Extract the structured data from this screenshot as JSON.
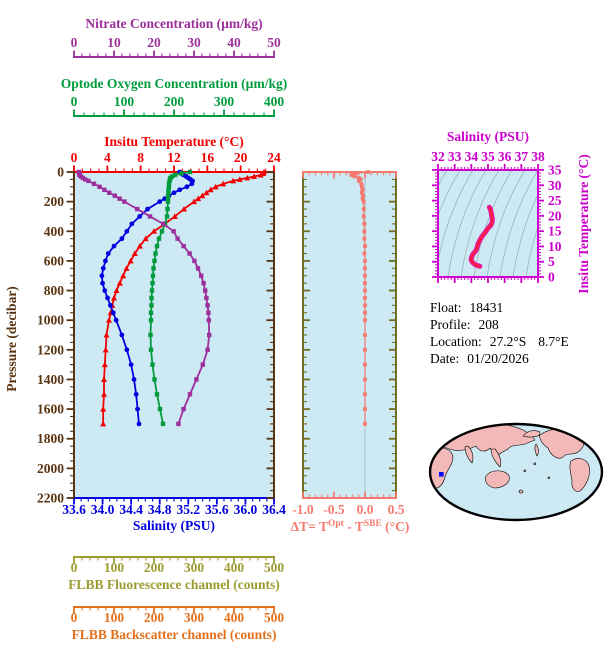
{
  "info": {
    "lines": [
      {
        "label": "Float:",
        "value": "18431"
      },
      {
        "label": "Profile:",
        "value": "208"
      },
      {
        "label": "Location:",
        "value": "27.2°S",
        "value2": "8.7°E"
      },
      {
        "label": "Date:",
        "value": "01/20/2026"
      }
    ]
  },
  "chart_data": [
    {
      "id": "main-profiles",
      "type": "line",
      "orientation": "vertical-profile",
      "ylabel": "Pressure (decibar)",
      "ylim": [
        0,
        2200
      ],
      "y_ticks": [
        0,
        200,
        400,
        600,
        800,
        1000,
        1200,
        1400,
        1600,
        1800,
        2000,
        2200
      ],
      "y_minor_step": 50,
      "axis_color": "#5a3310",
      "plot_bg": "#cdeaf4",
      "x_axes": [
        {
          "key": "nitrate",
          "label": "Nitrate Concentration (µm/kg)",
          "color": "#9c2f9c",
          "lim": [
            0,
            50
          ],
          "tick_labels": [
            "0",
            "10",
            "20",
            "30",
            "40",
            "50"
          ],
          "minor_step": 2,
          "position": "top"
        },
        {
          "key": "oxygen",
          "label": "Optode Oxygen Concentration (µm/kg)",
          "color": "#009b3c",
          "lim": [
            0,
            400
          ],
          "tick_labels": [
            "0",
            "100",
            "200",
            "300",
            "400"
          ],
          "minor_step": 20,
          "position": "top"
        },
        {
          "key": "temperature",
          "label": "Insitu Temperature (°C)",
          "color": "#f20000",
          "lim": [
            0,
            24
          ],
          "tick_labels": [
            "0",
            "4",
            "8",
            "12",
            "16",
            "20",
            "24"
          ],
          "minor_step": 1,
          "position": "top"
        },
        {
          "key": "salinity",
          "label": "Salinity (PSU)",
          "color": "#0000e0",
          "lim": [
            33.6,
            36.4
          ],
          "tick_labels": [
            "33.6",
            "34.0",
            "34.4",
            "34.8",
            "35.2",
            "35.6",
            "36.0",
            "36.4"
          ],
          "minor_step": 0.1,
          "position": "bottom"
        },
        {
          "key": "fluorescence",
          "label": "FLBB Fluorescence channel (counts)",
          "color": "#9c9c30",
          "lim": [
            0,
            500
          ],
          "tick_labels": [
            "0",
            "100",
            "200",
            "300",
            "400",
            "500"
          ],
          "minor_step": 20,
          "position": "bottom"
        },
        {
          "key": "backscatter",
          "label": "FLBB Backscatter channel (counts)",
          "color": "#e4701c",
          "lim": [
            0,
            500
          ],
          "tick_labels": [
            "0",
            "100",
            "200",
            "300",
            "400",
            "500"
          ],
          "minor_step": 20,
          "position": "bottom"
        }
      ],
      "pressure": [
        0,
        10,
        20,
        30,
        40,
        50,
        60,
        80,
        100,
        120,
        140,
        160,
        180,
        200,
        250,
        300,
        350,
        400,
        450,
        500,
        550,
        600,
        650,
        700,
        750,
        800,
        850,
        900,
        950,
        1000,
        1100,
        1200,
        1300,
        1400,
        1500,
        1600,
        1700
      ],
      "series": [
        {
          "name": "Insitu Temperature",
          "axis": "temperature",
          "color": "#f20000",
          "marker": "triangle",
          "values": [
            22.8,
            22.7,
            22.4,
            21.6,
            20.8,
            19.9,
            19.1,
            17.9,
            17.0,
            16.4,
            15.9,
            15.4,
            14.9,
            14.4,
            13.2,
            12.1,
            10.9,
            9.6,
            8.6,
            7.9,
            7.3,
            6.8,
            6.3,
            5.9,
            5.5,
            5.1,
            4.8,
            4.6,
            4.4,
            4.2,
            3.9,
            3.8,
            3.7,
            3.6,
            3.6,
            3.5,
            3.5
          ]
        },
        {
          "name": "Salinity",
          "axis": "salinity",
          "color": "#0000e0",
          "marker": "circle",
          "values": [
            35.08,
            35.1,
            35.13,
            35.17,
            35.2,
            35.23,
            35.26,
            35.25,
            35.18,
            35.08,
            35.0,
            34.93,
            34.87,
            34.8,
            34.63,
            34.52,
            34.41,
            34.34,
            34.27,
            34.16,
            34.08,
            34.04,
            34.01,
            33.99,
            34.0,
            34.03,
            34.07,
            34.11,
            34.15,
            34.19,
            34.27,
            34.34,
            34.4,
            34.44,
            34.47,
            34.49,
            34.51
          ]
        },
        {
          "name": "Optode Oxygen Concentration",
          "axis": "oxygen",
          "color": "#009b3c",
          "marker": "square",
          "values": [
            232,
            215,
            202,
            196,
            193,
            192,
            191,
            190,
            190,
            189,
            189,
            188,
            188,
            188,
            187,
            186,
            182,
            176,
            170,
            166,
            163,
            161,
            159,
            158,
            157,
            156,
            155,
            155,
            154,
            154,
            153,
            154,
            157,
            161,
            166,
            172,
            178
          ]
        },
        {
          "name": "Nitrate Concentration",
          "axis": "nitrate",
          "color": "#9c2f9c",
          "marker": "square",
          "values": [
            1.2,
            1.3,
            1.4,
            1.7,
            2.2,
            2.8,
            3.6,
            5.0,
            6.4,
            7.6,
            8.8,
            10.2,
            11.4,
            12.6,
            15.8,
            19.0,
            22.3,
            24.9,
            25.9,
            27.4,
            28.9,
            30.1,
            31.0,
            31.8,
            32.4,
            32.8,
            33.1,
            33.4,
            33.6,
            33.7,
            33.8,
            33.4,
            32.2,
            30.6,
            29.0,
            27.4,
            26.1
          ]
        }
      ]
    },
    {
      "id": "delta-t",
      "type": "line",
      "xlabel_parts": [
        "ΔT= T",
        "Opt",
        " - T",
        "SBE",
        " (°C)"
      ],
      "xlim": [
        -1.0,
        0.5
      ],
      "tick_labels": [
        "-1.0",
        "-0.5",
        "0.0",
        "0.5"
      ],
      "minor_step": 0.1,
      "color": "#f47a70",
      "frame_side_color": "#6f6f1f",
      "zero_line": 0.0,
      "pressure": [
        0,
        10,
        20,
        30,
        40,
        50,
        60,
        80,
        100,
        120,
        140,
        160,
        180,
        200,
        250,
        300,
        350,
        400,
        450,
        500,
        550,
        600,
        650,
        700,
        750,
        800,
        850,
        900,
        950,
        1000,
        1100,
        1200,
        1300,
        1400,
        1500,
        1600,
        1700
      ],
      "values": [
        0.05,
        -0.15,
        -0.22,
        -0.17,
        -0.1,
        -0.07,
        -0.1,
        -0.06,
        -0.05,
        -0.04,
        -0.05,
        -0.03,
        -0.04,
        -0.02,
        -0.02,
        -0.02,
        -0.01,
        -0.01,
        -0.01,
        0.0,
        -0.01,
        0.0,
        0.0,
        0.0,
        0.0,
        0.0,
        0.0,
        0.0,
        0.0,
        0.0,
        0.0,
        0.0,
        0.0,
        0.0,
        0.0,
        0.0,
        0.0
      ]
    },
    {
      "id": "t-s-diagram",
      "type": "line",
      "title": "Salinity (PSU)",
      "ylabel": "Insitu Temperature (°C)",
      "xlim": [
        32,
        38
      ],
      "x_tick_labels": [
        "32",
        "33",
        "34",
        "35",
        "36",
        "37",
        "38"
      ],
      "x_minor_step": 0.2,
      "ylim": [
        0,
        35
      ],
      "y_tick_labels": [
        "0",
        "5",
        "10",
        "15",
        "20",
        "25",
        "30",
        "35"
      ],
      "y_minor_step": 1,
      "color": "#cc00cc",
      "curve_color": "#e8189c",
      "curve_core_color": "#ff2020",
      "salinity": [
        35.08,
        35.1,
        35.13,
        35.17,
        35.2,
        35.23,
        35.26,
        35.25,
        35.18,
        35.08,
        35.0,
        34.93,
        34.87,
        34.8,
        34.63,
        34.52,
        34.41,
        34.34,
        34.27,
        34.16,
        34.08,
        34.04,
        34.01,
        33.99,
        34.0,
        34.03,
        34.07,
        34.11,
        34.15,
        34.19,
        34.27,
        34.34,
        34.4,
        34.44,
        34.47,
        34.49,
        34.51
      ],
      "temperature": [
        22.8,
        22.7,
        22.4,
        21.6,
        20.8,
        19.9,
        19.1,
        17.9,
        17.0,
        16.4,
        15.9,
        15.4,
        14.9,
        14.4,
        13.2,
        12.1,
        10.9,
        9.6,
        8.6,
        7.9,
        7.3,
        6.8,
        6.3,
        5.9,
        5.5,
        5.1,
        4.8,
        4.6,
        4.4,
        4.2,
        3.9,
        3.8,
        3.7,
        3.6,
        3.6,
        3.5,
        3.5
      ]
    }
  ],
  "map": {
    "ocean_color": "#cdeaf4",
    "land_color": "#f3b9b9",
    "outline_color": "#000000",
    "marker_color": "#0008ff"
  }
}
